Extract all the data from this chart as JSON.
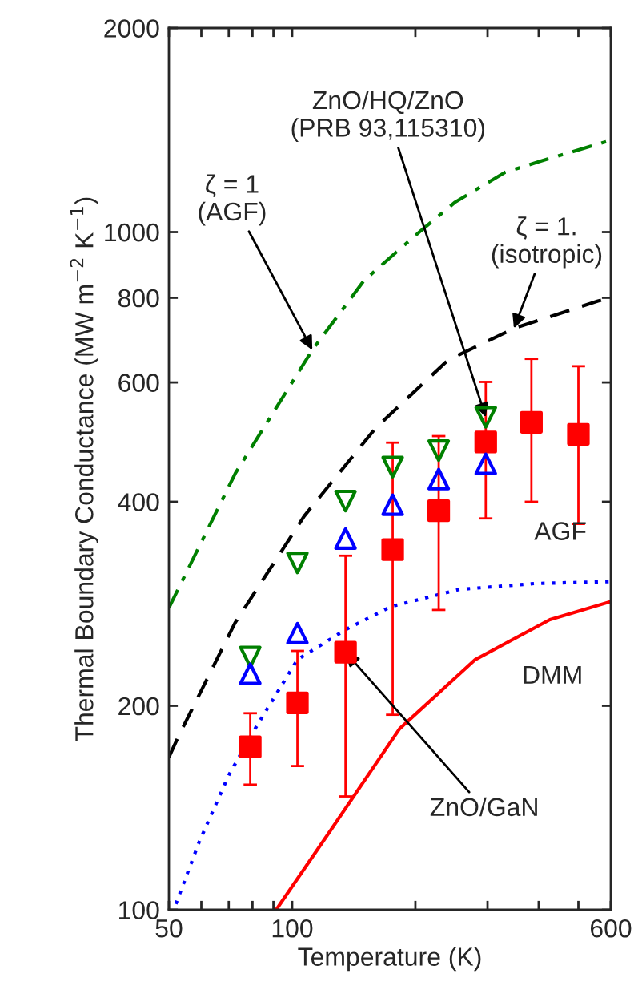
{
  "chart_data": {
    "type": "line",
    "xlabel": "Temperature (K)",
    "ylabel": "Thermal Boundary Conductance (MW m$^{−2}$ K$^{−1}$)",
    "log": "xy",
    "xlim": [
      50,
      600
    ],
    "xticks": [
      50,
      {
        "value": 60,
        "label": null
      },
      {
        "value": 70,
        "label": null
      },
      {
        "value": 80,
        "label": null
      },
      {
        "value": 90,
        "label": null
      },
      100,
      {
        "value": 200,
        "label": null
      },
      {
        "value": 300,
        "label": null
      },
      {
        "value": 400,
        "label": null
      },
      {
        "value": 500,
        "label": null
      },
      600
    ],
    "ylim": [
      100,
      2000
    ],
    "yticks": [
      100,
      200,
      400,
      600,
      800,
      1000,
      2000
    ],
    "grid": false,
    "legend": false,
    "series": [
      {
        "color": "#008000",
        "line_style": "dashdot",
        "x": [
          50,
          72.7,
          112,
          150,
          206,
          250,
          331,
          400,
          600
        ],
        "values": [
          279,
          441,
          670,
          849,
          1004,
          1107,
          1225,
          1270,
          1366
        ]
      },
      {
        "color": "#000000",
        "line_style": "dashed",
        "x": [
          50,
          52.7,
          72.5,
          107,
          160,
          240,
          348,
          558,
          600
        ],
        "values": [
          168,
          180,
          265,
          381,
          514,
          647,
          721,
          791,
          800
        ]
      },
      {
        "color": "#0000ff",
        "line_style": "dotted",
        "x": [
          52,
          59.3,
          70,
          81.6,
          103,
          135,
          174,
          256,
          391,
          600
        ],
        "values": [
          102,
          126,
          158,
          186,
          234,
          259,
          280,
          297,
          303,
          305
        ]
      },
      {
        "color": "#ff0000",
        "line_style": "solid",
        "x": [
          91.4,
          122,
          183,
          280,
          426,
          600
        ],
        "values": [
          100,
          129,
          185,
          234,
          268,
          285
        ]
      },
      {
        "type": "scatter",
        "color": "#ff0000",
        "marker": "square",
        "x": [
          79,
          103,
          135,
          176,
          228,
          297,
          384,
          500
        ],
        "values": [
          174,
          202,
          240,
          340,
          388,
          490,
          524,
          503
        ],
        "errors": [
          [
            153,
            195
          ],
          [
            163,
            241
          ],
          [
            147,
            333
          ],
          [
            194,
            489
          ],
          [
            277,
            500
          ],
          [
            378,
            601
          ],
          [
            400,
            650
          ],
          [
            371,
            634
          ]
        ]
      },
      {
        "type": "scatter",
        "color": "#008000",
        "marker": "triangle_down",
        "x": [
          79,
          103,
          135,
          176,
          228,
          297
        ],
        "values": [
          236,
          325,
          401,
          450,
          476,
          533
        ]
      },
      {
        "type": "scatter",
        "color": "#0000ff",
        "marker": "triangle",
        "x": [
          79,
          103,
          135,
          176,
          228,
          297
        ],
        "values": [
          223,
          256,
          353,
          396,
          432,
          455
        ]
      }
    ],
    "annotations": [
      {
        "text": "ζ = 1\n(AGF)",
        "x": 112,
        "y": 670
      },
      {
        "text": "ζ = 1.\n(isotropic)",
        "x": 348,
        "y": 721
      },
      {
        "text": "ZnO/HQ/ZnO\n(PRB 93,115310)",
        "x": 297,
        "y": 533
      },
      "AGF",
      "DMM",
      {
        "text": "ZnO/GaN",
        "x": 135,
        "y": 240
      }
    ]
  }
}
